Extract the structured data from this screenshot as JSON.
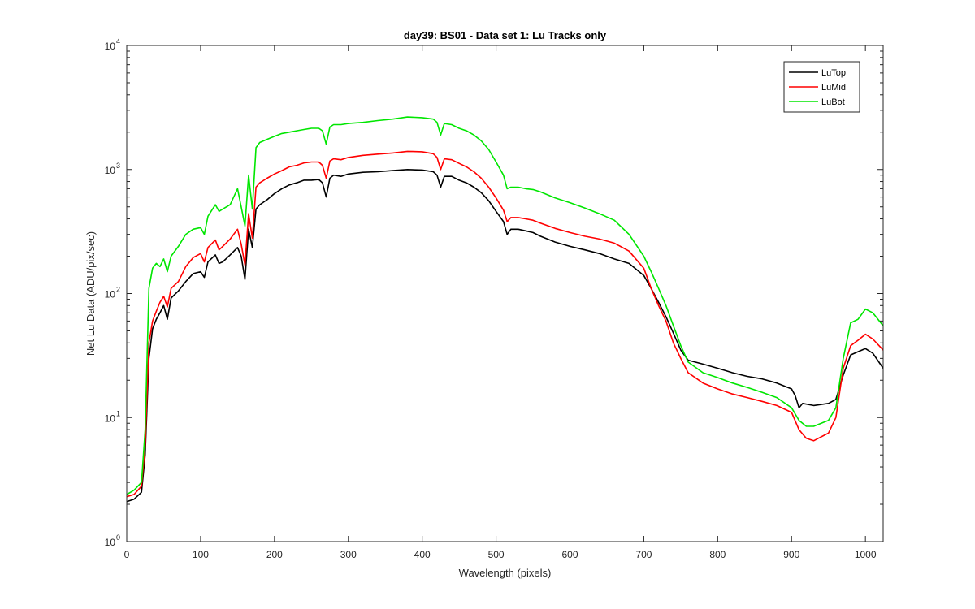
{
  "chart_data": {
    "type": "line",
    "title": "day39: BS01 - Data set 1: Lu Tracks only",
    "xlabel": "Wavelength (pixels)",
    "ylabel": "Net Lu Data (ADU/pix/sec)",
    "xlim": [
      0,
      1024
    ],
    "ylim": [
      1,
      10000
    ],
    "yscale": "log",
    "x_ticks": [
      0,
      100,
      200,
      300,
      400,
      500,
      600,
      700,
      800,
      900,
      1000
    ],
    "y_ticks": [
      {
        "value": 1,
        "base": "10",
        "exp": "0"
      },
      {
        "value": 10,
        "base": "10",
        "exp": "1"
      },
      {
        "value": 100,
        "base": "10",
        "exp": "2"
      },
      {
        "value": 1000,
        "base": "10",
        "exp": "3"
      },
      {
        "value": 10000,
        "base": "10",
        "exp": "4"
      }
    ],
    "grid": false,
    "legend_position": "top-right",
    "series": [
      {
        "name": "LuTop",
        "color": "#000000",
        "points": [
          [
            0,
            2.1
          ],
          [
            10,
            2.2
          ],
          [
            20,
            2.5
          ],
          [
            25,
            5
          ],
          [
            30,
            30
          ],
          [
            35,
            52
          ],
          [
            40,
            62
          ],
          [
            45,
            70
          ],
          [
            50,
            80
          ],
          [
            55,
            62
          ],
          [
            60,
            92
          ],
          [
            70,
            105
          ],
          [
            80,
            125
          ],
          [
            90,
            145
          ],
          [
            100,
            150
          ],
          [
            105,
            135
          ],
          [
            110,
            180
          ],
          [
            120,
            205
          ],
          [
            125,
            175
          ],
          [
            130,
            180
          ],
          [
            140,
            205
          ],
          [
            150,
            235
          ],
          [
            155,
            200
          ],
          [
            160,
            130
          ],
          [
            165,
            330
          ],
          [
            170,
            235
          ],
          [
            175,
            480
          ],
          [
            180,
            520
          ],
          [
            190,
            570
          ],
          [
            200,
            640
          ],
          [
            210,
            700
          ],
          [
            220,
            750
          ],
          [
            230,
            780
          ],
          [
            240,
            820
          ],
          [
            250,
            820
          ],
          [
            260,
            830
          ],
          [
            265,
            780
          ],
          [
            270,
            600
          ],
          [
            275,
            850
          ],
          [
            280,
            900
          ],
          [
            290,
            880
          ],
          [
            300,
            920
          ],
          [
            320,
            950
          ],
          [
            340,
            960
          ],
          [
            360,
            980
          ],
          [
            380,
            1000
          ],
          [
            400,
            990
          ],
          [
            415,
            960
          ],
          [
            420,
            900
          ],
          [
            425,
            720
          ],
          [
            430,
            880
          ],
          [
            440,
            880
          ],
          [
            450,
            820
          ],
          [
            460,
            780
          ],
          [
            470,
            720
          ],
          [
            480,
            650
          ],
          [
            490,
            560
          ],
          [
            500,
            460
          ],
          [
            510,
            380
          ],
          [
            515,
            300
          ],
          [
            520,
            330
          ],
          [
            530,
            330
          ],
          [
            540,
            320
          ],
          [
            550,
            310
          ],
          [
            560,
            290
          ],
          [
            580,
            260
          ],
          [
            600,
            240
          ],
          [
            620,
            225
          ],
          [
            640,
            210
          ],
          [
            660,
            190
          ],
          [
            680,
            175
          ],
          [
            700,
            140
          ],
          [
            710,
            110
          ],
          [
            720,
            85
          ],
          [
            730,
            65
          ],
          [
            740,
            48
          ],
          [
            750,
            35
          ],
          [
            760,
            29
          ],
          [
            780,
            27
          ],
          [
            800,
            25
          ],
          [
            820,
            23
          ],
          [
            840,
            21.5
          ],
          [
            860,
            20.5
          ],
          [
            880,
            19
          ],
          [
            900,
            17
          ],
          [
            905,
            15
          ],
          [
            910,
            12
          ],
          [
            915,
            13
          ],
          [
            930,
            12.5
          ],
          [
            950,
            13
          ],
          [
            960,
            14
          ],
          [
            970,
            22
          ],
          [
            980,
            32
          ],
          [
            990,
            34
          ],
          [
            1000,
            36
          ],
          [
            1010,
            33
          ],
          [
            1024,
            25
          ]
        ]
      },
      {
        "name": "LuMid",
        "color": "#ff0000",
        "points": [
          [
            0,
            2.3
          ],
          [
            10,
            2.4
          ],
          [
            20,
            2.8
          ],
          [
            25,
            6
          ],
          [
            30,
            40
          ],
          [
            35,
            60
          ],
          [
            40,
            72
          ],
          [
            45,
            85
          ],
          [
            50,
            95
          ],
          [
            55,
            78
          ],
          [
            60,
            110
          ],
          [
            70,
            125
          ],
          [
            80,
            165
          ],
          [
            90,
            195
          ],
          [
            100,
            210
          ],
          [
            105,
            180
          ],
          [
            110,
            235
          ],
          [
            120,
            270
          ],
          [
            125,
            225
          ],
          [
            130,
            240
          ],
          [
            140,
            275
          ],
          [
            150,
            330
          ],
          [
            155,
            250
          ],
          [
            160,
            170
          ],
          [
            165,
            440
          ],
          [
            170,
            280
          ],
          [
            175,
            720
          ],
          [
            180,
            780
          ],
          [
            190,
            850
          ],
          [
            200,
            920
          ],
          [
            210,
            980
          ],
          [
            220,
            1050
          ],
          [
            230,
            1080
          ],
          [
            240,
            1130
          ],
          [
            250,
            1150
          ],
          [
            260,
            1150
          ],
          [
            265,
            1080
          ],
          [
            270,
            850
          ],
          [
            275,
            1170
          ],
          [
            280,
            1220
          ],
          [
            290,
            1200
          ],
          [
            300,
            1250
          ],
          [
            320,
            1300
          ],
          [
            340,
            1330
          ],
          [
            360,
            1360
          ],
          [
            380,
            1400
          ],
          [
            400,
            1390
          ],
          [
            415,
            1340
          ],
          [
            420,
            1250
          ],
          [
            425,
            1000
          ],
          [
            430,
            1220
          ],
          [
            440,
            1200
          ],
          [
            450,
            1120
          ],
          [
            460,
            1050
          ],
          [
            470,
            960
          ],
          [
            480,
            850
          ],
          [
            490,
            720
          ],
          [
            500,
            590
          ],
          [
            510,
            470
          ],
          [
            515,
            380
          ],
          [
            520,
            410
          ],
          [
            530,
            410
          ],
          [
            540,
            400
          ],
          [
            550,
            390
          ],
          [
            560,
            370
          ],
          [
            580,
            335
          ],
          [
            600,
            310
          ],
          [
            620,
            290
          ],
          [
            640,
            275
          ],
          [
            660,
            255
          ],
          [
            680,
            220
          ],
          [
            700,
            160
          ],
          [
            710,
            110
          ],
          [
            720,
            80
          ],
          [
            730,
            60
          ],
          [
            740,
            40
          ],
          [
            750,
            30
          ],
          [
            760,
            23
          ],
          [
            780,
            19
          ],
          [
            800,
            17
          ],
          [
            820,
            15.5
          ],
          [
            840,
            14.5
          ],
          [
            860,
            13.5
          ],
          [
            880,
            12.5
          ],
          [
            900,
            11
          ],
          [
            910,
            8
          ],
          [
            920,
            6.8
          ],
          [
            930,
            6.5
          ],
          [
            950,
            7.5
          ],
          [
            960,
            10
          ],
          [
            970,
            25
          ],
          [
            980,
            38
          ],
          [
            990,
            42
          ],
          [
            1000,
            47
          ],
          [
            1010,
            43
          ],
          [
            1024,
            35
          ]
        ]
      },
      {
        "name": "LuBot",
        "color": "#00e600",
        "points": [
          [
            0,
            2.4
          ],
          [
            10,
            2.6
          ],
          [
            20,
            3
          ],
          [
            25,
            8
          ],
          [
            30,
            110
          ],
          [
            35,
            160
          ],
          [
            40,
            175
          ],
          [
            45,
            165
          ],
          [
            50,
            190
          ],
          [
            55,
            150
          ],
          [
            60,
            200
          ],
          [
            70,
            240
          ],
          [
            80,
            300
          ],
          [
            90,
            330
          ],
          [
            100,
            340
          ],
          [
            105,
            300
          ],
          [
            110,
            420
          ],
          [
            120,
            520
          ],
          [
            125,
            460
          ],
          [
            130,
            480
          ],
          [
            140,
            520
          ],
          [
            150,
            700
          ],
          [
            155,
            500
          ],
          [
            160,
            350
          ],
          [
            165,
            900
          ],
          [
            170,
            480
          ],
          [
            175,
            1500
          ],
          [
            180,
            1650
          ],
          [
            190,
            1750
          ],
          [
            200,
            1850
          ],
          [
            210,
            1950
          ],
          [
            220,
            2000
          ],
          [
            230,
            2050
          ],
          [
            240,
            2100
          ],
          [
            250,
            2150
          ],
          [
            260,
            2150
          ],
          [
            265,
            2050
          ],
          [
            270,
            1600
          ],
          [
            275,
            2200
          ],
          [
            280,
            2300
          ],
          [
            290,
            2300
          ],
          [
            300,
            2350
          ],
          [
            320,
            2400
          ],
          [
            340,
            2480
          ],
          [
            360,
            2550
          ],
          [
            380,
            2650
          ],
          [
            400,
            2620
          ],
          [
            415,
            2550
          ],
          [
            420,
            2400
          ],
          [
            425,
            1900
          ],
          [
            430,
            2350
          ],
          [
            440,
            2300
          ],
          [
            450,
            2150
          ],
          [
            460,
            2050
          ],
          [
            470,
            1900
          ],
          [
            480,
            1700
          ],
          [
            490,
            1450
          ],
          [
            500,
            1150
          ],
          [
            510,
            900
          ],
          [
            515,
            700
          ],
          [
            520,
            720
          ],
          [
            530,
            720
          ],
          [
            540,
            700
          ],
          [
            550,
            690
          ],
          [
            560,
            660
          ],
          [
            580,
            590
          ],
          [
            600,
            540
          ],
          [
            620,
            490
          ],
          [
            640,
            440
          ],
          [
            660,
            390
          ],
          [
            680,
            300
          ],
          [
            700,
            200
          ],
          [
            710,
            150
          ],
          [
            720,
            110
          ],
          [
            730,
            80
          ],
          [
            740,
            55
          ],
          [
            750,
            38
          ],
          [
            760,
            28
          ],
          [
            780,
            23
          ],
          [
            800,
            21
          ],
          [
            820,
            19
          ],
          [
            840,
            17.5
          ],
          [
            860,
            16
          ],
          [
            880,
            14.5
          ],
          [
            900,
            12
          ],
          [
            910,
            9.5
          ],
          [
            920,
            8.5
          ],
          [
            930,
            8.5
          ],
          [
            950,
            9.5
          ],
          [
            960,
            12
          ],
          [
            970,
            30
          ],
          [
            980,
            58
          ],
          [
            990,
            62
          ],
          [
            1000,
            75
          ],
          [
            1010,
            70
          ],
          [
            1024,
            55
          ]
        ]
      }
    ]
  }
}
